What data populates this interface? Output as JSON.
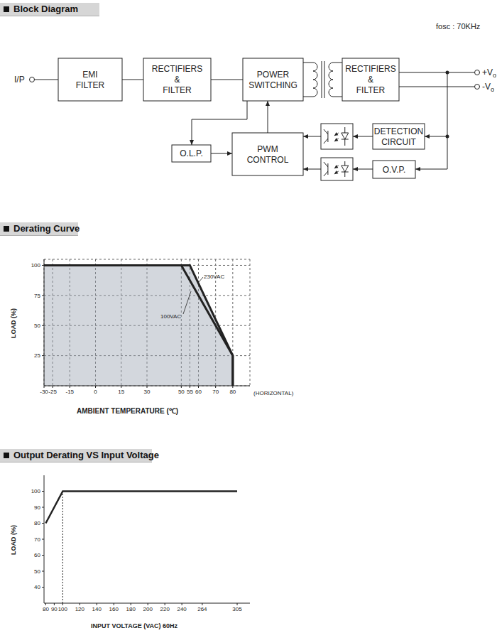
{
  "block_diagram": {
    "title": "Block Diagram",
    "note": "fosc : 70KHz",
    "input": "I/P",
    "outputs": [
      "+Vo",
      "-Vo"
    ],
    "nodes": {
      "emi": [
        "EMI",
        "FILTER"
      ],
      "rect_in": [
        "RECTIFIERS",
        "&",
        "FILTER"
      ],
      "power": [
        "POWER",
        "SWITCHING"
      ],
      "rect_out": [
        "RECTIFIERS",
        "&",
        "FILTER"
      ],
      "olp": [
        "O.L.P."
      ],
      "pwm": [
        "PWM",
        "CONTROL"
      ],
      "detect": [
        "DETECTION",
        "CIRCUIT"
      ],
      "ovp": [
        "O.V.P."
      ]
    }
  },
  "chart_data": [
    {
      "type": "line",
      "title": "Derating Curve",
      "xlabel": "AMBIENT TEMPERATURE (℃)",
      "ylabel": "LOAD (%)",
      "annotations": [
        "(HORIZONTAL)"
      ],
      "xlim": [
        -30,
        90
      ],
      "xticks": [
        -30,
        -25,
        -15,
        0,
        15,
        30,
        50,
        55,
        60,
        70,
        80
      ],
      "ylim": [
        0,
        105
      ],
      "yticks": [
        25,
        50,
        75,
        100
      ],
      "grid": true,
      "series": [
        {
          "name": "230VAC",
          "type": "area",
          "color": "#222222",
          "x": [
            -30,
            55,
            80,
            80
          ],
          "values": [
            100,
            100,
            25,
            0
          ]
        },
        {
          "name": "100VAC",
          "type": "line",
          "color": "#222222",
          "x": [
            -30,
            50,
            70,
            80,
            80
          ],
          "values": [
            100,
            100,
            50,
            25,
            0
          ]
        }
      ]
    },
    {
      "type": "line",
      "title": "Output Derating VS Input Voltage",
      "xlabel": "INPUT VOLTAGE (VAC) 60Hz",
      "ylabel": "LOAD (%)",
      "xlim": [
        78,
        320
      ],
      "xticks": [
        80,
        90,
        100,
        120,
        140,
        160,
        180,
        200,
        220,
        240,
        264,
        305
      ],
      "ylim": [
        30,
        110
      ],
      "yticks": [
        40,
        50,
        60,
        70,
        80,
        90,
        100
      ],
      "grid": false,
      "color": "#222222",
      "x": [
        80,
        100,
        305
      ],
      "values": [
        80,
        100,
        100
      ]
    }
  ]
}
